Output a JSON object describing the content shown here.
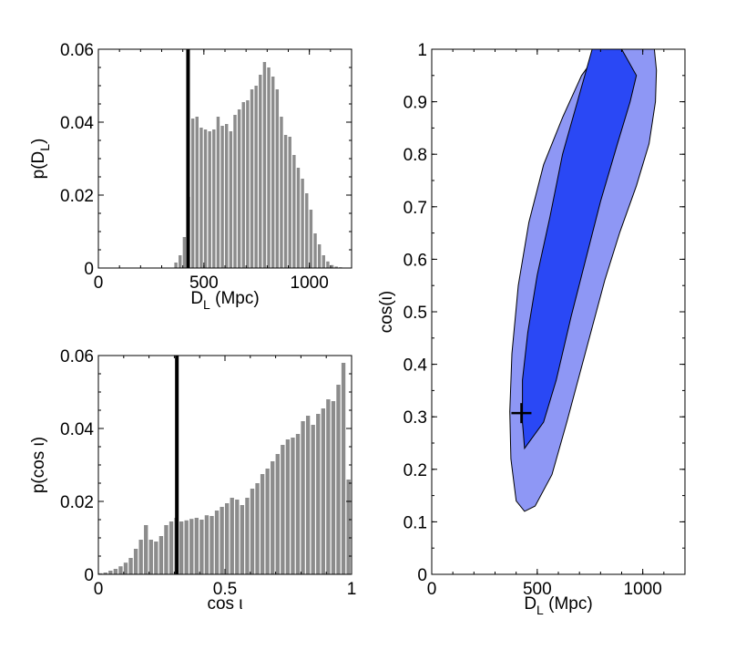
{
  "chart_data": [
    {
      "type": "bar",
      "panel": "top-left histogram",
      "ylabel": "p(D",
      "ylabel_sub": "L",
      "ylabel_tail": ")",
      "xlabel": "D",
      "xlabel_sub": "L",
      "xlabel_tail": " (Mpc)",
      "xlim": [
        0,
        1200
      ],
      "ylim": [
        0,
        0.06
      ],
      "xticks": [
        {
          "value": 0,
          "label": "0"
        },
        {
          "value": 500,
          "label": "500"
        },
        {
          "value": 1000,
          "label": "1000"
        }
      ],
      "yticks": [
        {
          "value": 0,
          "label": "0"
        },
        {
          "value": 0.02,
          "label": "0.02"
        },
        {
          "value": 0.04,
          "label": "0.04"
        },
        {
          "value": 0.06,
          "label": "0.06"
        }
      ],
      "bin_start": 0,
      "bin_width": 20,
      "values": [
        0,
        0,
        0,
        0,
        0,
        0,
        0,
        0,
        0,
        0,
        0,
        0,
        0,
        0,
        0,
        0,
        0,
        0,
        0.0015,
        0.0035,
        0.0085,
        0.0195,
        0.041,
        0.0415,
        0.0385,
        0.038,
        0.0375,
        0.038,
        0.0415,
        0.039,
        0.0395,
        0.0375,
        0.042,
        0.0435,
        0.0455,
        0.046,
        0.049,
        0.05,
        0.053,
        0.0565,
        0.055,
        0.0525,
        0.049,
        0.0415,
        0.0365,
        0.036,
        0.031,
        0.0275,
        0.0245,
        0.0205,
        0.016,
        0.0095,
        0.0065,
        0.0035,
        0.0018,
        0.0008,
        0.0004,
        0.0002,
        0.0001,
        0
      ],
      "marker_line": 425,
      "bar_color": "#8c8c8c",
      "line_color": "#000000"
    },
    {
      "type": "bar",
      "panel": "bottom-left histogram",
      "ylabel": "p(cos ι)",
      "xlabel": "cos ι",
      "xlim": [
        0,
        1
      ],
      "ylim": [
        0,
        0.06
      ],
      "xticks": [
        {
          "value": 0,
          "label": "0"
        },
        {
          "value": 0.5,
          "label": "0.5"
        },
        {
          "value": 1,
          "label": "1"
        }
      ],
      "yticks": [
        {
          "value": 0,
          "label": "0"
        },
        {
          "value": 0.02,
          "label": "0.02"
        },
        {
          "value": 0.04,
          "label": "0.04"
        },
        {
          "value": 0.06,
          "label": "0.06"
        }
      ],
      "bin_start": 0,
      "bin_width": 0.02,
      "values": [
        0.0003,
        0.0005,
        0.001,
        0.0015,
        0.0022,
        0.0032,
        0.0045,
        0.007,
        0.0095,
        0.0135,
        0.0095,
        0.009,
        0.0105,
        0.0135,
        0.0145,
        0.0155,
        0.0145,
        0.0148,
        0.0152,
        0.0155,
        0.015,
        0.0162,
        0.016,
        0.0175,
        0.0185,
        0.0195,
        0.021,
        0.0205,
        0.019,
        0.021,
        0.0235,
        0.025,
        0.0275,
        0.029,
        0.031,
        0.033,
        0.0355,
        0.037,
        0.0375,
        0.0385,
        0.042,
        0.0435,
        0.041,
        0.044,
        0.0455,
        0.048,
        0.0475,
        0.052,
        0.058,
        0.026
      ],
      "marker_line": 0.31,
      "bar_color": "#8c8c8c",
      "line_color": "#000000"
    },
    {
      "type": "contour",
      "panel": "right joint posterior",
      "ylabel": "cos(ι)",
      "xlabel": "D",
      "xlabel_sub": "L",
      "xlabel_tail": " (Mpc)",
      "xlim": [
        0,
        1200
      ],
      "ylim": [
        0,
        1
      ],
      "xticks": [
        {
          "value": 0,
          "label": "0"
        },
        {
          "value": 500,
          "label": "500"
        },
        {
          "value": 1000,
          "label": "1000"
        }
      ],
      "yticks": [
        {
          "value": 0,
          "label": "0"
        },
        {
          "value": 0.1,
          "label": "0.1"
        },
        {
          "value": 0.2,
          "label": "0.2"
        },
        {
          "value": 0.3,
          "label": "0.3"
        },
        {
          "value": 0.4,
          "label": "0.4"
        },
        {
          "value": 0.5,
          "label": "0.5"
        },
        {
          "value": 0.6,
          "label": "0.6"
        },
        {
          "value": 0.7,
          "label": "0.7"
        },
        {
          "value": 0.8,
          "label": "0.8"
        },
        {
          "value": 0.9,
          "label": "0.9"
        },
        {
          "value": 1,
          "label": "1"
        }
      ],
      "outer_region": {
        "color": "#8e97f5",
        "points": [
          [
            800,
            1.0
          ],
          [
            1055,
            1.0
          ],
          [
            1065,
            0.96
          ],
          [
            1060,
            0.9
          ],
          [
            1030,
            0.82
          ],
          [
            970,
            0.74
          ],
          [
            890,
            0.65
          ],
          [
            820,
            0.56
          ],
          [
            760,
            0.47
          ],
          [
            700,
            0.38
          ],
          [
            640,
            0.29
          ],
          [
            570,
            0.19
          ],
          [
            490,
            0.13
          ],
          [
            440,
            0.12
          ],
          [
            400,
            0.14
          ],
          [
            375,
            0.22
          ],
          [
            370,
            0.31
          ],
          [
            380,
            0.42
          ],
          [
            410,
            0.55
          ],
          [
            460,
            0.67
          ],
          [
            530,
            0.78
          ],
          [
            620,
            0.87
          ],
          [
            710,
            0.95
          ]
        ]
      },
      "inner_region": {
        "color": "#2a48f5",
        "points": [
          [
            760,
            1.0
          ],
          [
            900,
            1.0
          ],
          [
            970,
            0.95
          ],
          [
            940,
            0.9
          ],
          [
            880,
            0.82
          ],
          [
            800,
            0.71
          ],
          [
            730,
            0.6
          ],
          [
            660,
            0.49
          ],
          [
            590,
            0.37
          ],
          [
            530,
            0.29
          ],
          [
            440,
            0.24
          ],
          [
            430,
            0.29
          ],
          [
            430,
            0.37
          ],
          [
            455,
            0.46
          ],
          [
            500,
            0.57
          ],
          [
            560,
            0.68
          ],
          [
            620,
            0.8
          ],
          [
            690,
            0.9
          ]
        ]
      },
      "marker": {
        "x": 425,
        "y": 0.307,
        "color": "#000000"
      }
    }
  ]
}
